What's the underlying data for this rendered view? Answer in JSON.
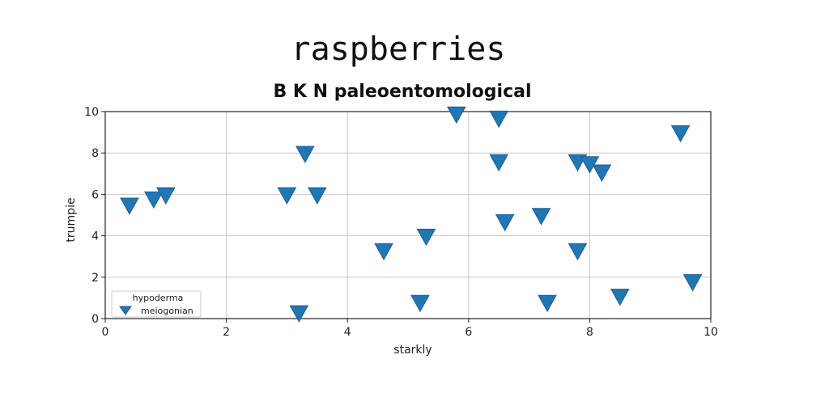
{
  "chart_data": {
    "type": "scatter",
    "title": "raspberries",
    "subtitle": "B K N paleoentomological",
    "xlabel": "starkly",
    "ylabel": "trumpie",
    "xlim": [
      0,
      10
    ],
    "ylim": [
      0,
      10
    ],
    "xticks": [
      "0",
      "2",
      "4",
      "6",
      "8",
      "10"
    ],
    "yticks": [
      "0",
      "2",
      "4",
      "6",
      "8",
      "10"
    ],
    "grid": true,
    "legend": {
      "title": "hypoderma",
      "placement": "lower-left"
    },
    "marker": "triangle-down",
    "color": "#1f77b4",
    "series": [
      {
        "name": "meiogonian",
        "x": [
          0.4,
          0.8,
          1.0,
          3.0,
          3.3,
          3.5,
          3.2,
          4.6,
          5.2,
          5.3,
          5.8,
          6.5,
          6.5,
          6.6,
          7.2,
          7.3,
          7.8,
          7.8,
          8.0,
          8.2,
          8.5,
          9.5,
          9.7
        ],
        "y": [
          5.5,
          5.8,
          6.0,
          6.0,
          8.0,
          6.0,
          0.3,
          3.3,
          0.8,
          4.0,
          9.9,
          9.7,
          7.6,
          4.7,
          5.0,
          0.8,
          7.6,
          3.3,
          7.5,
          7.1,
          1.1,
          9.0,
          1.8
        ]
      }
    ]
  }
}
